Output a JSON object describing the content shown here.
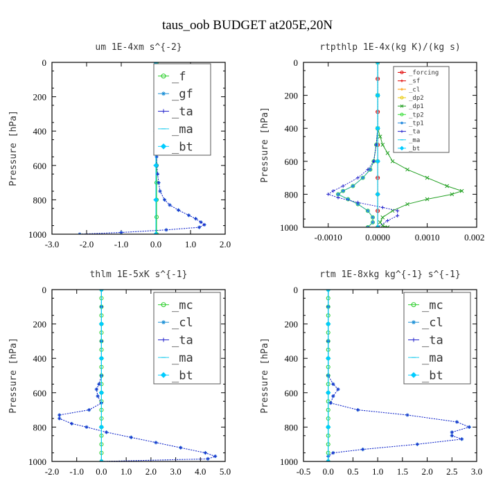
{
  "figure": {
    "title": "taus_oob  BUDGET at205E,20N",
    "colors": {
      "forcing": "#e00000",
      "sf": "#e00000",
      "cl_small": "#ff9900",
      "dp2": "#e8c800",
      "dp1": "#22a022",
      "f": "#22cc22",
      "gf": "#1a8fd6",
      "tp2": "#33dd33",
      "tp1": "#2288dd",
      "ta": "#2222cc",
      "ma": "#22ccee",
      "bt": "#00ccff",
      "mc": "#22cc22",
      "cl": "#1a8fd6"
    }
  },
  "chart_data": [
    {
      "type": "line",
      "title": "um  1E-4xm s^{-2}",
      "ylabel": "Pressure [hPa]",
      "xlim": [
        -3.0,
        2.0
      ],
      "ylim": [
        1000,
        0
      ],
      "xticks": [
        "-3.0",
        "-2.0",
        "-1.0",
        "0.0",
        "1.0",
        "2.0"
      ],
      "yticks": [
        "0",
        "200",
        "400",
        "600",
        "800",
        "1000"
      ],
      "legend": "top-right",
      "series": [
        {
          "name": "_f",
          "color_key": "f",
          "marker": "circle",
          "y": [
            0,
            100,
            200,
            300,
            400,
            500,
            600,
            700,
            800,
            900,
            1000
          ],
          "x": [
            0.02,
            0.02,
            0.02,
            0.02,
            0.02,
            0.02,
            0.02,
            0.02,
            0.02,
            0.02,
            0.02
          ]
        },
        {
          "name": "_gf",
          "color_key": "gf",
          "marker": "asterisk",
          "y": [
            0,
            100,
            200,
            300,
            400,
            500,
            550,
            600,
            650,
            700,
            750,
            800,
            830,
            860,
            890,
            910,
            930,
            945,
            960,
            975,
            990,
            1000
          ],
          "x": [
            0.0,
            0.0,
            0.0,
            0.0,
            0.0,
            0.0,
            0.02,
            0.03,
            0.05,
            0.08,
            0.12,
            0.25,
            0.4,
            0.65,
            0.95,
            1.15,
            1.3,
            1.4,
            1.25,
            0.3,
            -1.0,
            -2.2
          ]
        },
        {
          "name": "_ta",
          "color_key": "ta",
          "marker": "plus",
          "y": [
            0,
            100,
            200,
            300,
            400,
            500,
            550,
            600,
            650,
            700,
            750,
            800,
            830,
            860,
            890,
            910,
            930,
            945,
            960,
            975,
            990,
            1000
          ],
          "x": [
            0.0,
            0.0,
            0.0,
            0.0,
            0.0,
            0.0,
            0.02,
            0.03,
            0.05,
            0.08,
            0.12,
            0.25,
            0.4,
            0.65,
            0.95,
            1.15,
            1.3,
            1.4,
            1.25,
            0.3,
            -1.0,
            -2.2
          ]
        },
        {
          "name": "_ma",
          "color_key": "ma",
          "marker": "dash",
          "y": [
            0,
            200,
            400,
            600,
            800,
            1000
          ],
          "x": [
            0.0,
            0.0,
            0.0,
            0.0,
            0.0,
            0.0
          ]
        },
        {
          "name": "_bt",
          "color_key": "bt",
          "marker": "diamond",
          "y": [
            0,
            200,
            400,
            600,
            800,
            1000
          ],
          "x": [
            0.0,
            0.0,
            0.0,
            0.0,
            0.0,
            0.0
          ]
        }
      ]
    },
    {
      "type": "line",
      "title": "rtpthlp  1E-4x(kg K)/(kg s)",
      "ylabel": "Pressure [hPa]",
      "xlim": [
        -0.0015,
        0.002
      ],
      "ylim": [
        1000,
        0
      ],
      "xticks": [
        "-0.0010",
        "0.0000",
        "0.0010",
        "0.0020"
      ],
      "xtick_values": [
        -0.001,
        0.0,
        0.001,
        0.002
      ],
      "yticks": [
        "0",
        "200",
        "400",
        "600",
        "800",
        "1000"
      ],
      "legend": "top-right",
      "series": [
        {
          "name": "_forcing",
          "color_key": "forcing",
          "marker": "circle",
          "y": [
            0,
            100,
            200,
            300,
            400,
            500,
            600,
            700,
            800,
            900,
            1000
          ],
          "x": [
            0,
            0,
            0,
            0,
            0,
            0,
            0,
            0,
            0,
            0,
            0
          ]
        },
        {
          "name": "_sf",
          "color_key": "sf",
          "marker": "plus",
          "y": [
            0,
            100,
            200,
            300,
            400,
            500,
            600,
            700,
            800,
            900,
            1000
          ],
          "x": [
            0,
            0,
            0,
            0,
            0,
            0,
            0,
            0,
            0,
            0,
            0
          ]
        },
        {
          "name": "_cl",
          "color_key": "cl_small",
          "marker": "plus",
          "y": [
            0,
            200,
            400,
            600,
            800,
            1000
          ],
          "x": [
            0,
            0,
            0,
            0,
            0,
            0
          ]
        },
        {
          "name": "_dp2",
          "color_key": "dp2",
          "marker": "circle",
          "y": [
            0,
            200,
            400,
            600,
            800,
            1000
          ],
          "x": [
            0,
            0,
            0,
            0,
            0,
            0
          ]
        },
        {
          "name": "_dp1",
          "color_key": "dp1",
          "marker": "cross",
          "y": [
            0,
            200,
            400,
            450,
            500,
            550,
            600,
            650,
            700,
            750,
            780,
            800,
            830,
            860,
            900,
            940,
            970,
            990,
            1000
          ],
          "x": [
            0,
            0,
            0,
            5e-05,
            0.0001,
            0.0002,
            0.0003,
            0.0006,
            0.001,
            0.0014,
            0.0017,
            0.0015,
            0.001,
            0.0006,
            0.0003,
            0.0001,
            5e-05,
            0.0001,
            0.0002
          ]
        },
        {
          "name": "_tp2",
          "color_key": "tp2",
          "marker": "circle",
          "y": [
            0,
            200,
            400,
            500,
            600,
            650,
            700,
            750,
            780,
            800,
            830,
            860,
            900,
            940,
            970,
            1000
          ],
          "x": [
            0,
            0,
            0,
            -3e-05,
            -8e-05,
            -0.00015,
            -0.0003,
            -0.0005,
            -0.0007,
            -0.0008,
            -0.0006,
            -0.0004,
            -0.0002,
            -0.0001,
            -0.0001,
            -0.0002
          ]
        },
        {
          "name": "_tp1",
          "color_key": "tp1",
          "marker": "asterisk",
          "y": [
            0,
            200,
            400,
            500,
            600,
            650,
            700,
            750,
            780,
            800,
            830,
            860,
            900,
            940,
            970,
            1000
          ],
          "x": [
            0,
            0,
            0,
            -3e-05,
            -8e-05,
            -0.00015,
            -0.0003,
            -0.0005,
            -0.0007,
            -0.0008,
            -0.0006,
            -0.0004,
            -0.0002,
            -0.0001,
            -0.0001,
            -0.0002
          ]
        },
        {
          "name": "_ta",
          "color_key": "ta",
          "marker": "plus",
          "y": [
            0,
            200,
            400,
            500,
            600,
            650,
            700,
            750,
            780,
            800,
            820,
            850,
            880,
            900,
            930,
            960,
            1000
          ],
          "x": [
            0,
            0,
            0,
            -3e-05,
            -8e-05,
            -0.0002,
            -0.0004,
            -0.0007,
            -0.0009,
            -0.001,
            -0.0008,
            -0.0004,
            0.0001,
            0.0004,
            0.0004,
            0.0002,
            0.0
          ]
        },
        {
          "name": "_ma",
          "color_key": "ma",
          "marker": "dash",
          "y": [
            0,
            200,
            400,
            600,
            800,
            1000
          ],
          "x": [
            0,
            0,
            0,
            0,
            0,
            0
          ]
        },
        {
          "name": "_bt",
          "color_key": "bt",
          "marker": "diamond",
          "y": [
            0,
            200,
            400,
            600,
            800,
            1000
          ],
          "x": [
            0,
            0,
            0,
            0,
            0,
            0
          ]
        }
      ]
    },
    {
      "type": "line",
      "title": "thlm  1E-5xK s^{-1}",
      "ylabel": "Pressure [hPa]",
      "xlim": [
        -2.0,
        5.0
      ],
      "ylim": [
        1000,
        0
      ],
      "xticks": [
        "-2.0",
        "-1.0",
        "0.0",
        "1.0",
        "2.0",
        "3.0",
        "4.0",
        "5.0"
      ],
      "yticks": [
        "0",
        "200",
        "400",
        "600",
        "800",
        "1000"
      ],
      "legend": "top-right",
      "series": [
        {
          "name": "_mc",
          "color_key": "mc",
          "marker": "circle",
          "y": [
            0,
            50,
            100,
            150,
            200,
            250,
            300,
            350,
            400,
            450,
            500,
            550,
            600,
            650,
            700,
            750,
            800,
            850,
            900,
            950,
            1000
          ],
          "x": [
            0,
            0,
            0,
            0,
            0,
            0,
            0,
            0,
            0,
            0,
            0,
            0,
            0,
            0,
            0,
            0,
            0,
            0,
            0,
            0,
            0
          ]
        },
        {
          "name": "_cl",
          "color_key": "cl",
          "marker": "asterisk",
          "y": [
            0,
            100,
            200,
            300,
            400,
            500,
            550,
            580,
            620,
            660,
            700,
            730,
            750,
            780,
            800,
            830,
            860,
            890,
            920,
            950,
            970,
            985,
            1000
          ],
          "x": [
            0,
            0,
            0,
            0,
            0,
            0,
            -0.1,
            -0.2,
            -0.15,
            0.0,
            -0.5,
            -1.7,
            -1.7,
            -1.2,
            -0.6,
            0.2,
            1.2,
            2.2,
            3.2,
            4.2,
            4.6,
            4.3,
            0.0
          ]
        },
        {
          "name": "_ta",
          "color_key": "ta",
          "marker": "plus",
          "y": [
            0,
            100,
            200,
            300,
            400,
            500,
            550,
            580,
            620,
            660,
            700,
            730,
            750,
            780,
            800,
            830,
            860,
            890,
            920,
            950,
            970,
            985,
            1000
          ],
          "x": [
            0,
            0,
            0,
            0,
            0,
            0,
            -0.1,
            -0.2,
            -0.15,
            0.0,
            -0.5,
            -1.7,
            -1.7,
            -1.2,
            -0.6,
            0.2,
            1.2,
            2.2,
            3.2,
            4.2,
            4.6,
            4.3,
            0.0
          ]
        },
        {
          "name": "_ma",
          "color_key": "ma",
          "marker": "dash",
          "y": [
            0,
            200,
            400,
            600,
            800,
            1000
          ],
          "x": [
            0,
            0,
            0,
            0,
            0,
            0
          ]
        },
        {
          "name": "_bt",
          "color_key": "bt",
          "marker": "diamond",
          "y": [
            0,
            200,
            400,
            600,
            800,
            1000
          ],
          "x": [
            0,
            0,
            0,
            0,
            0,
            0
          ]
        }
      ]
    },
    {
      "type": "line",
      "title": "rtm  1E-8xkg kg^{-1} s^{-1}",
      "ylabel": "Pressure [hPa]",
      "xlim": [
        -0.5,
        3.0
      ],
      "ylim": [
        1000,
        0
      ],
      "xticks": [
        "-0.5",
        "0.0",
        "0.5",
        "1.0",
        "1.5",
        "2.0",
        "2.5",
        "3.0"
      ],
      "yticks": [
        "0",
        "200",
        "400",
        "600",
        "800",
        "1000"
      ],
      "legend": "top-right",
      "series": [
        {
          "name": "_mc",
          "color_key": "mc",
          "marker": "circle",
          "y": [
            0,
            50,
            100,
            150,
            200,
            250,
            300,
            350,
            400,
            450,
            500,
            550,
            600,
            650,
            700,
            750,
            800,
            850,
            900,
            950,
            1000
          ],
          "x": [
            0,
            0,
            0,
            0,
            0,
            0,
            0,
            0,
            0,
            0,
            0,
            0,
            0,
            0,
            0,
            0,
            0,
            0,
            0,
            0,
            0
          ]
        },
        {
          "name": "_cl",
          "color_key": "cl",
          "marker": "asterisk",
          "y": [
            0,
            100,
            200,
            300,
            400,
            500,
            550,
            580,
            620,
            660,
            700,
            730,
            770,
            800,
            830,
            850,
            870,
            900,
            930,
            950,
            970,
            1000
          ],
          "x": [
            0,
            0,
            0,
            0,
            0,
            0,
            0.1,
            0.2,
            0.1,
            0.05,
            0.6,
            1.6,
            2.6,
            2.85,
            2.5,
            2.5,
            2.7,
            1.8,
            0.7,
            0.1,
            0.0,
            0.0
          ]
        },
        {
          "name": "_ta",
          "color_key": "ta",
          "marker": "plus",
          "y": [
            0,
            100,
            200,
            300,
            400,
            500,
            550,
            580,
            620,
            660,
            700,
            730,
            770,
            800,
            830,
            850,
            870,
            900,
            930,
            950,
            970,
            1000
          ],
          "x": [
            0,
            0,
            0,
            0,
            0,
            0,
            0.1,
            0.2,
            0.1,
            0.05,
            0.6,
            1.6,
            2.6,
            2.85,
            2.5,
            2.5,
            2.7,
            1.8,
            0.7,
            0.1,
            0.0,
            0.0
          ]
        },
        {
          "name": "_ma",
          "color_key": "ma",
          "marker": "dash",
          "y": [
            0,
            200,
            400,
            600,
            800,
            1000
          ],
          "x": [
            0,
            0,
            0,
            0,
            0,
            0
          ]
        },
        {
          "name": "_bt",
          "color_key": "bt",
          "marker": "diamond",
          "y": [
            0,
            200,
            400,
            600,
            800,
            1000
          ],
          "x": [
            0,
            0,
            0,
            0,
            0,
            0
          ]
        }
      ]
    }
  ]
}
